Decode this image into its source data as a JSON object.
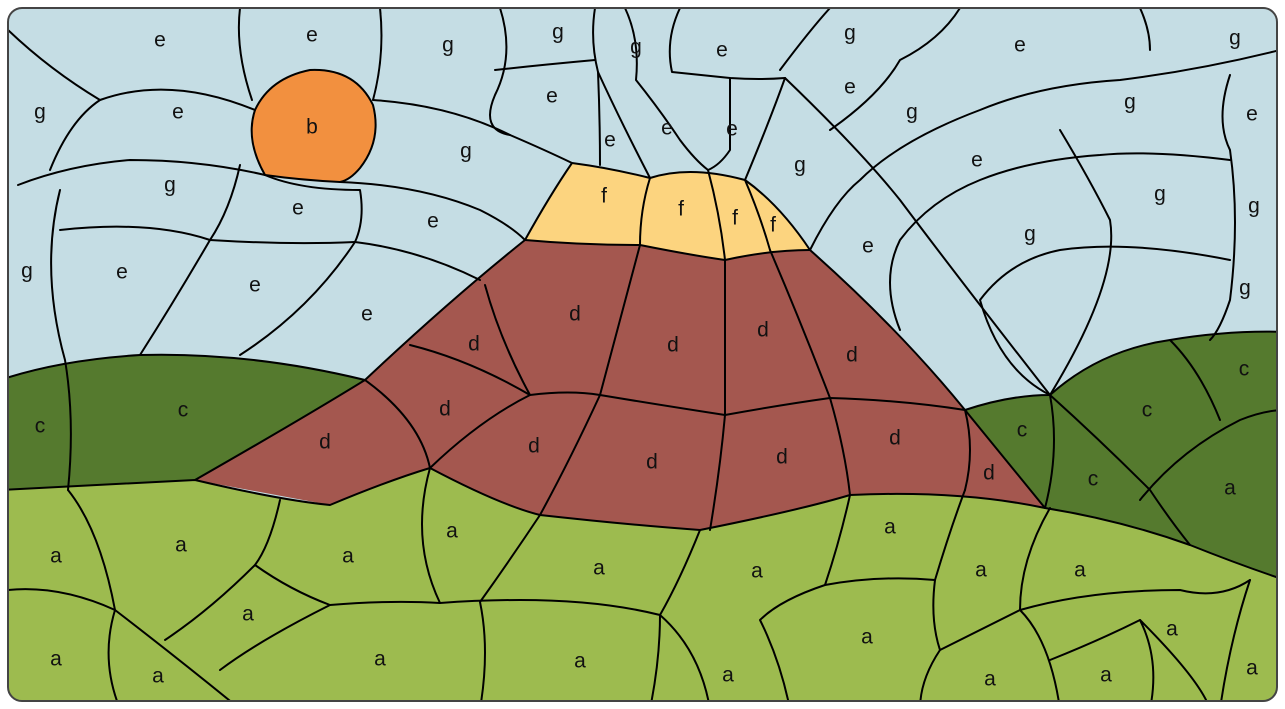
{
  "palette": {
    "a": "#9dbb4f",
    "b": "#f2903f",
    "c": "#557a2e",
    "d": "#a4574f",
    "e": "#c5dde4",
    "f": "#fcd47f",
    "g": "#c5dde4"
  },
  "outline_color": "#000000",
  "frame_color": "#444444",
  "labels": {
    "sky": [
      "e",
      "e",
      "g",
      "g",
      "g",
      "e",
      "g",
      "e",
      "g",
      "g",
      "e",
      "b",
      "e",
      "g",
      "e",
      "e",
      "e",
      "e",
      "g",
      "g",
      "e",
      "g",
      "e",
      "g",
      "e",
      "g",
      "g",
      "g",
      "e",
      "e",
      "g",
      "e",
      "e",
      "e",
      "g"
    ],
    "summit": [
      "f",
      "f",
      "f",
      "f"
    ],
    "mountain": [
      "d",
      "d",
      "d",
      "d",
      "d",
      "d",
      "d",
      "d",
      "d",
      "d",
      "d",
      "d"
    ],
    "hills": [
      "c",
      "c",
      "c",
      "c",
      "c",
      "c"
    ],
    "meadow": [
      "a",
      "a",
      "a",
      "a",
      "a",
      "a",
      "a",
      "a",
      "a",
      "a",
      "a",
      "a",
      "a",
      "a",
      "a",
      "a",
      "a",
      "a",
      "a"
    ]
  }
}
